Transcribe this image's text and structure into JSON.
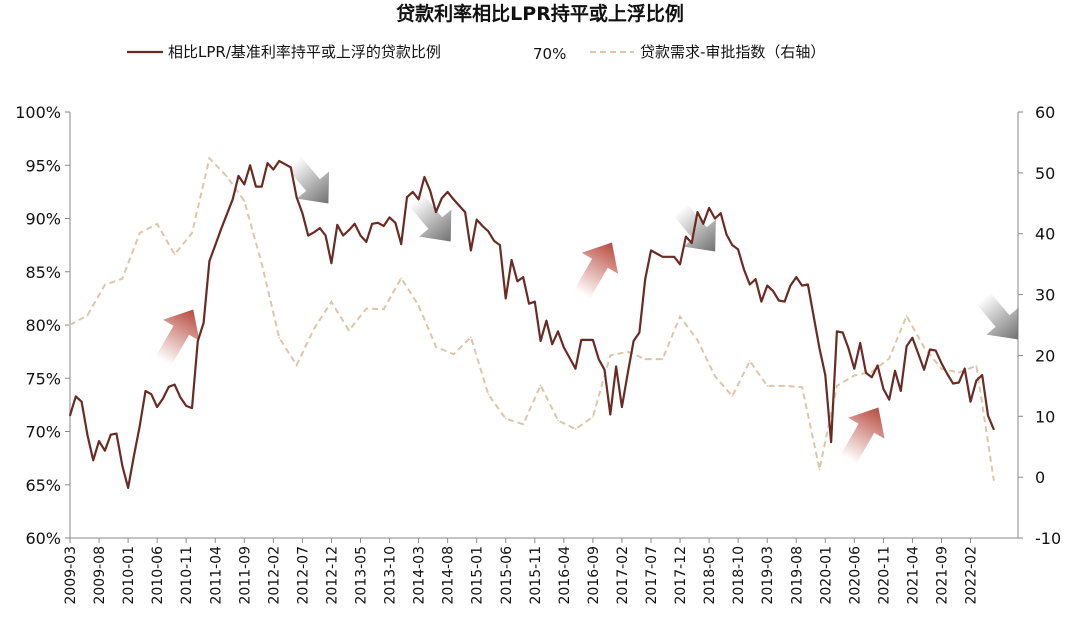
{
  "chart_data": {
    "type": "line",
    "title": "贷款利率相比LPR持平或上浮比例",
    "legend_position": "top-center",
    "grid": false,
    "colors": {
      "left_series": "#6b2a22",
      "right_series": "#dfc6a8",
      "arrow_up": "#b84a3e",
      "arrow_down": "#707070",
      "axis": "#8a8a8a"
    },
    "x_tick_labels": [
      "2009-03",
      "2009-08",
      "2010-01",
      "2010-06",
      "2010-11",
      "2011-04",
      "2011-09",
      "2012-02",
      "2012-07",
      "2012-12",
      "2013-05",
      "2013-10",
      "2014-03",
      "2014-08",
      "2015-01",
      "2015-06",
      "2015-11",
      "2016-04",
      "2016-09",
      "2017-02",
      "2017-07",
      "2017-12",
      "2018-05",
      "2018-10",
      "2019-03",
      "2019-08",
      "2020-01",
      "2020-06",
      "2020-11",
      "2021-04",
      "2021-09",
      "2022-02"
    ],
    "y_left": {
      "ticks": [
        "100%",
        "95%",
        "90%",
        "85%",
        "80%",
        "75%",
        "70%",
        "65%",
        "60%"
      ],
      "range": [
        60,
        100
      ],
      "unit": "%"
    },
    "y_right": {
      "ticks": [
        "60",
        "50",
        "40",
        "30",
        "20",
        "10",
        "0",
        "-10"
      ],
      "range": [
        -10,
        60
      ]
    },
    "series": [
      {
        "name": "相比LPR/基准利率持平或上浮的贷款比例",
        "axis": "left",
        "style": "solid",
        "end_label": "70%",
        "x_start": "2009-03",
        "values": [
          71.5,
          73.3,
          72.8,
          69.7,
          67.3,
          69.1,
          68.2,
          69.7,
          69.8,
          66.8,
          64.7,
          67.7,
          70.5,
          73.8,
          73.5,
          72.3,
          73.1,
          74.2,
          74.4,
          73.2,
          72.4,
          72.2,
          78.5,
          80.2,
          86.0,
          87.5,
          89.0,
          90.4,
          91.8,
          94.0,
          93.2,
          95.0,
          93.0,
          93.0,
          95.2,
          94.6,
          95.4,
          95.1,
          94.8,
          92.0,
          90.5,
          88.4,
          88.7,
          89.1,
          88.4,
          85.8,
          89.4,
          88.4,
          88.9,
          89.5,
          88.4,
          87.8,
          89.5,
          89.6,
          89.3,
          90.1,
          89.6,
          87.6,
          92.0,
          92.5,
          91.8,
          93.9,
          92.6,
          90.6,
          91.9,
          92.5,
          91.8,
          91.2,
          90.6,
          87.0,
          89.9,
          89.3,
          88.8,
          87.9,
          87.5,
          82.5,
          86.1,
          84.1,
          84.5,
          82.0,
          82.2,
          78.5,
          80.4,
          78.2,
          79.4,
          77.9,
          76.9,
          75.9,
          78.6,
          78.6,
          78.6,
          76.8,
          75.8,
          71.6,
          76.1,
          72.3,
          75.5,
          78.5,
          79.3,
          84.3,
          87.0,
          86.7,
          86.4,
          86.4,
          86.4,
          85.7,
          88.3,
          87.7,
          90.6,
          89.5,
          91.0,
          90.0,
          90.5,
          88.5,
          87.5,
          87.1,
          85.2,
          83.8,
          84.3,
          82.2,
          83.7,
          83.2,
          82.3,
          82.2,
          83.7,
          84.5,
          83.7,
          83.8,
          80.8,
          77.8,
          75.3,
          69.0,
          79.4,
          79.3,
          77.8,
          75.9,
          78.3,
          75.5,
          75.1,
          76.2,
          74.0,
          73.0,
          75.7,
          73.8,
          78.0,
          78.8,
          77.3,
          75.8,
          77.7,
          77.6,
          76.4,
          75.4,
          74.5,
          74.6,
          75.9,
          72.8,
          74.8,
          75.3,
          71.5,
          70.2
        ]
      },
      {
        "name": "贷款需求-审批指数（右轴）",
        "axis": "right",
        "style": "dashed",
        "x_start": "2009-03",
        "step_months": 3,
        "values": [
          25,
          26.6,
          31.6,
          32.6,
          40.1,
          41.6,
          36.6,
          40.1,
          52.4,
          49.4,
          45.4,
          35.1,
          22.9,
          18.4,
          24.4,
          28.8,
          24.1,
          27.7,
          27.6,
          32.7,
          28.2,
          21.4,
          20.2,
          23,
          13.6,
          9.6,
          8.7,
          15.1,
          9.3,
          7.9,
          9.9,
          20,
          20.6,
          19.4,
          19.4,
          26.4,
          22.5,
          16.6,
          13.3,
          19.1,
          15,
          15,
          14.8,
          1.3,
          15,
          16.7,
          17.3,
          19.5,
          26.5,
          21.3,
          17.8,
          17.2,
          18.3,
          -0.5
        ]
      }
    ],
    "annotations": [
      {
        "type": "arrow-up",
        "near": "2011-04"
      },
      {
        "type": "arrow-down",
        "near": "2012-07"
      },
      {
        "type": "arrow-down",
        "near": "2015-01"
      },
      {
        "type": "arrow-up",
        "near": "2016-09"
      },
      {
        "type": "arrow-down",
        "near": "2019-03"
      },
      {
        "type": "arrow-up",
        "near": "2020-11"
      },
      {
        "type": "arrow-down",
        "near": "2022-05"
      }
    ]
  }
}
